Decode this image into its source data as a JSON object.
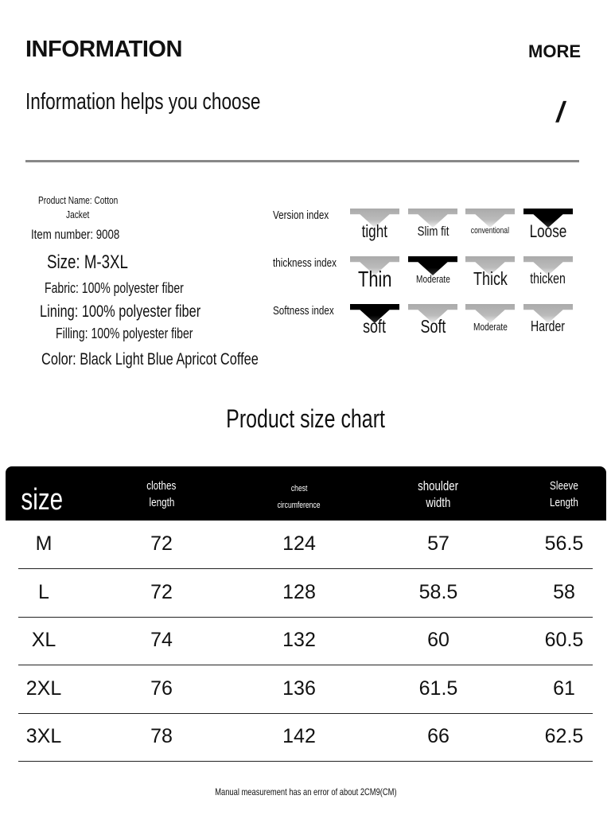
{
  "header": {
    "title": "INFORMATION",
    "more": "MORE",
    "subtitle": "Information helps you choose",
    "mark": "/"
  },
  "info": {
    "product_name_1": "Product Name: Cotton",
    "product_name_2": "Jacket",
    "item_number": "Item number: 9008",
    "size": "Size: M-3XL",
    "fabric": "Fabric: 100% polyester fiber",
    "lining": "Lining: 100% polyester fiber",
    "filling": "Filling: 100% polyester fiber",
    "color": "Color: Black Light Blue Apricot Coffee"
  },
  "indices": [
    {
      "label": "Version index",
      "options": [
        "tight",
        "Slim fit",
        "conventional",
        "Loose"
      ],
      "selected": 3
    },
    {
      "label": "thickness index",
      "options": [
        "Thin",
        "Moderate",
        "Thick",
        "thicken"
      ],
      "selected": 1
    },
    {
      "label": "Softness index",
      "options": [
        "soft",
        "Soft",
        "Moderate",
        "Harder"
      ],
      "selected": 0
    }
  ],
  "chart": {
    "title": "Product size chart",
    "headers": [
      [
        "size"
      ],
      [
        "clothes",
        "length"
      ],
      [
        "chest",
        "circumference"
      ],
      [
        "shoulder",
        "width"
      ],
      [
        "Sleeve",
        "Length"
      ]
    ],
    "rows": [
      [
        "M",
        "72",
        "124",
        "57",
        "56.5"
      ],
      [
        "L",
        "72",
        "128",
        "58.5",
        "58"
      ],
      [
        "XL",
        "74",
        "132",
        "60",
        "60.5"
      ],
      [
        "2XL",
        "76",
        "136",
        "61.5",
        "61"
      ],
      [
        "3XL",
        "78",
        "142",
        "66",
        "62.5"
      ]
    ],
    "footnote": "Manual measurement has an error of about 2CM9(CM)"
  }
}
